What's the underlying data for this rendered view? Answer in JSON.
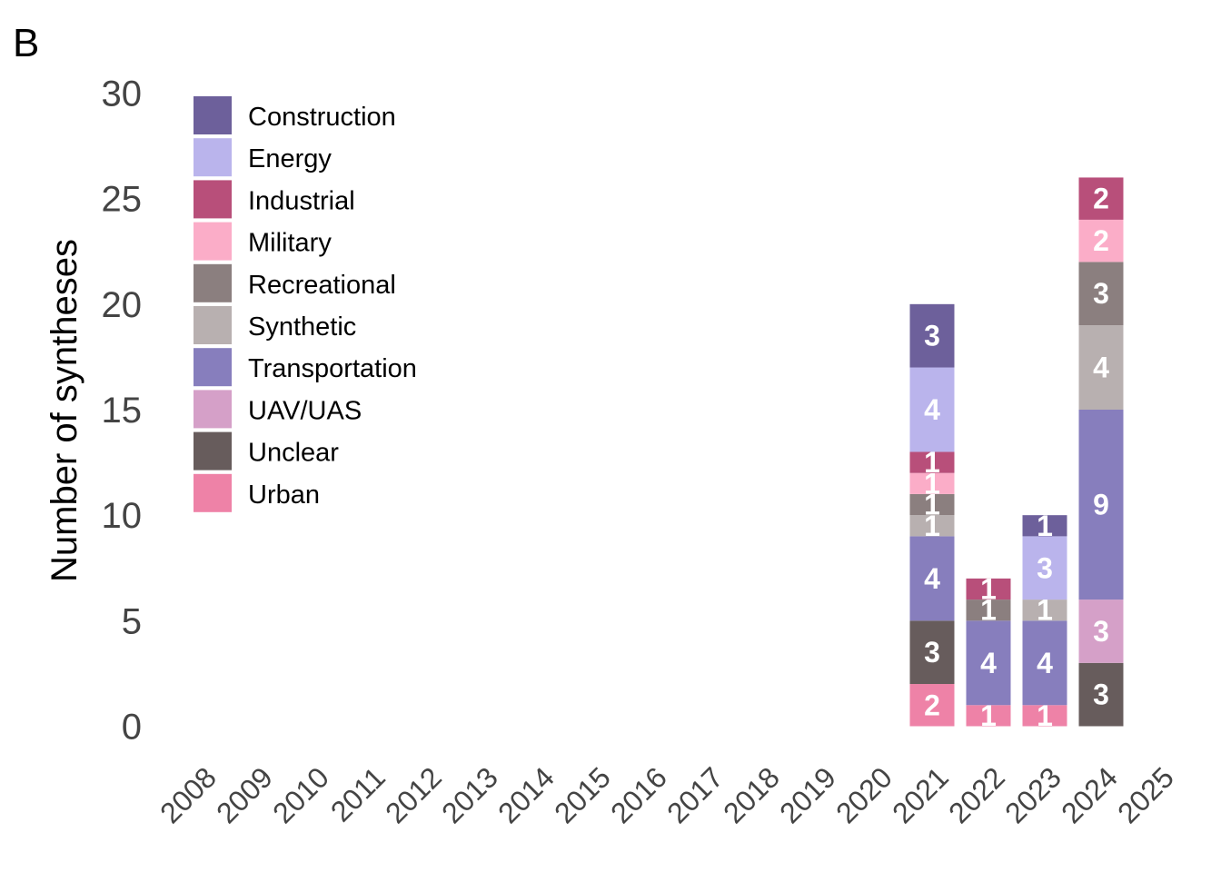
{
  "panel_label": "B",
  "chart_data": {
    "type": "bar",
    "stacked": true,
    "title": "",
    "xlabel": "",
    "ylabel": "Number of syntheses",
    "ylim": [
      0,
      30
    ],
    "yticks": [
      0,
      5,
      10,
      15,
      20,
      25,
      30
    ],
    "grid": false,
    "legend_position": "top-left",
    "categories": [
      "2008",
      "2009",
      "2010",
      "2011",
      "2012",
      "2013",
      "2014",
      "2015",
      "2016",
      "2017",
      "2018",
      "2019",
      "2020",
      "2021",
      "2022",
      "2023",
      "2024",
      "2025"
    ],
    "series": [
      {
        "name": "Urban",
        "color": "#ee82a7",
        "values": [
          0,
          0,
          0,
          0,
          0,
          0,
          0,
          0,
          0,
          0,
          0,
          0,
          0,
          2,
          1,
          1,
          0,
          0
        ]
      },
      {
        "name": "Unclear",
        "color": "#675c5c",
        "values": [
          0,
          0,
          0,
          0,
          0,
          0,
          0,
          0,
          0,
          0,
          0,
          0,
          0,
          3,
          0,
          0,
          3,
          0
        ]
      },
      {
        "name": "UAV/UAS",
        "color": "#d5a0c8",
        "values": [
          0,
          0,
          0,
          0,
          0,
          0,
          0,
          0,
          0,
          0,
          0,
          0,
          0,
          0,
          0,
          0,
          3,
          0
        ]
      },
      {
        "name": "Transportation",
        "color": "#877ebd",
        "values": [
          0,
          0,
          0,
          0,
          0,
          0,
          0,
          0,
          0,
          0,
          0,
          0,
          0,
          4,
          4,
          4,
          9,
          0
        ]
      },
      {
        "name": "Synthetic",
        "color": "#b8b0b0",
        "values": [
          0,
          0,
          0,
          0,
          0,
          0,
          0,
          0,
          0,
          0,
          0,
          0,
          0,
          1,
          0,
          1,
          4,
          0
        ]
      },
      {
        "name": "Recreational",
        "color": "#8b7f7f",
        "values": [
          0,
          0,
          0,
          0,
          0,
          0,
          0,
          0,
          0,
          0,
          0,
          0,
          0,
          1,
          1,
          0,
          3,
          0
        ]
      },
      {
        "name": "Military",
        "color": "#fbadc8",
        "values": [
          0,
          0,
          0,
          0,
          0,
          0,
          0,
          0,
          0,
          0,
          0,
          0,
          0,
          1,
          0,
          0,
          2,
          0
        ]
      },
      {
        "name": "Industrial",
        "color": "#b84f7a",
        "values": [
          0,
          0,
          0,
          0,
          0,
          0,
          0,
          0,
          0,
          0,
          0,
          0,
          0,
          1,
          1,
          0,
          2,
          0
        ]
      },
      {
        "name": "Energy",
        "color": "#bab4ec",
        "values": [
          0,
          0,
          0,
          0,
          0,
          0,
          0,
          0,
          0,
          0,
          0,
          0,
          0,
          4,
          0,
          3,
          0,
          0
        ]
      },
      {
        "name": "Construction",
        "color": "#6d609b",
        "values": [
          0,
          0,
          0,
          0,
          0,
          0,
          0,
          0,
          0,
          0,
          0,
          0,
          0,
          3,
          0,
          1,
          0,
          0
        ]
      }
    ],
    "legend_order": [
      "Construction",
      "Energy",
      "Industrial",
      "Military",
      "Recreational",
      "Synthetic",
      "Transportation",
      "UAV/UAS",
      "Unclear",
      "Urban"
    ]
  }
}
